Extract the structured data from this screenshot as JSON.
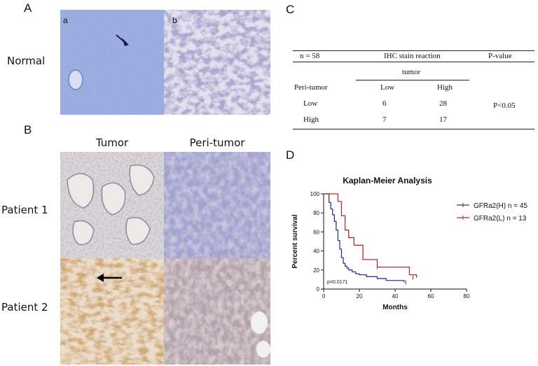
{
  "panels": {
    "a": "A",
    "b": "B",
    "c": "C",
    "d": "D"
  },
  "panel_a": {
    "row_label": "Normal",
    "sub_a": "a",
    "sub_b": "b"
  },
  "panel_b": {
    "col_tumor": "Tumor",
    "col_peri": "Peri-tumor",
    "row_patient1": "Patient 1",
    "row_patient2": "Patient 2"
  },
  "table": {
    "n": "n = 58",
    "ihc_header": "IHC stain reaction",
    "pvalue_header": "P-value",
    "tumor_header": "tumor",
    "peri_label": "Peri-tumor",
    "low_col": "Low",
    "high_col": "High",
    "rows": [
      {
        "label": "Low",
        "low": "6",
        "high": "28"
      },
      {
        "label": "High",
        "low": "7",
        "high": "17"
      }
    ],
    "pvalue": "P<0.05"
  },
  "chart_data": {
    "type": "line",
    "title": "Kaplan-Meier Analysis",
    "xlabel": "Months",
    "ylabel": "Percent survival",
    "xlim": [
      0,
      80
    ],
    "ylim": [
      0,
      100
    ],
    "xticks": [
      "0",
      "20",
      "40",
      "60",
      "80"
    ],
    "yticks": [
      "0",
      "20",
      "40",
      "60",
      "80",
      "100"
    ],
    "annotation": "p=0.0171",
    "legend_position": "right",
    "series": [
      {
        "name": "GFRa2(H) n = 45",
        "color": "#2b3a8f",
        "x": [
          0,
          3,
          4,
          5,
          6,
          7,
          8,
          9,
          10,
          11,
          12,
          13,
          14,
          16,
          18,
          20,
          24,
          30,
          35,
          45
        ],
        "y": [
          100,
          91,
          84,
          78,
          71,
          62,
          51,
          42,
          33,
          27,
          24,
          22,
          20,
          18,
          16,
          15,
          13,
          11,
          9,
          7
        ]
      },
      {
        "name": "GFRa2(L) n = 13",
        "color": "#c0282b",
        "x": [
          0,
          8,
          10,
          12,
          14,
          17,
          22,
          30,
          48,
          52
        ],
        "y": [
          100,
          92,
          77,
          62,
          54,
          46,
          31,
          23,
          15,
          12
        ]
      }
    ],
    "censored": [
      {
        "series": 0,
        "x": 46,
        "y": 7
      },
      {
        "series": 1,
        "x": 30,
        "y": 23
      },
      {
        "series": 1,
        "x": 50,
        "y": 12
      }
    ]
  }
}
